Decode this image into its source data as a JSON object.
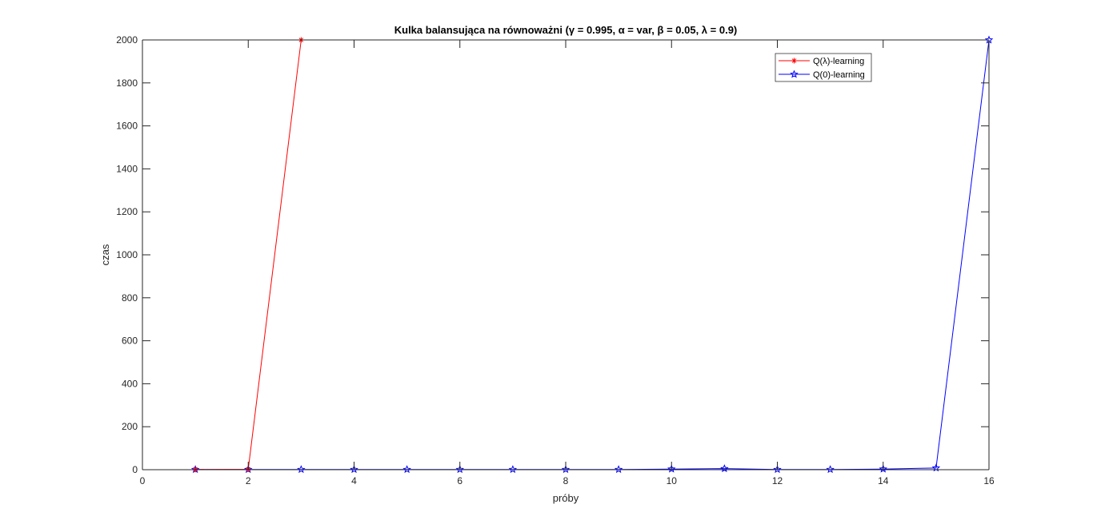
{
  "chart_data": {
    "type": "line",
    "title": "Kulka balansująca na równoważni (γ = 0.995, α = var, β = 0.05, λ = 0.9)",
    "xlabel": "próby",
    "ylabel": "czas",
    "xlim": [
      0,
      16
    ],
    "ylim": [
      0,
      2000
    ],
    "xticks": [
      0,
      2,
      4,
      6,
      8,
      10,
      12,
      14,
      16
    ],
    "yticks": [
      0,
      200,
      400,
      600,
      800,
      1000,
      1200,
      1400,
      1600,
      1800,
      2000
    ],
    "grid": false,
    "legend_position": "top-right",
    "series": [
      {
        "name": "Q(λ)-learning",
        "color": "#ff0000",
        "marker": "asterisk",
        "x": [
          1,
          2,
          3
        ],
        "y": [
          1,
          2,
          2000
        ]
      },
      {
        "name": "Q(0)-learning",
        "color": "#0000ff",
        "marker": "pentagram",
        "x": [
          1,
          2,
          3,
          4,
          5,
          6,
          7,
          8,
          9,
          10,
          11,
          12,
          13,
          14,
          15,
          16
        ],
        "y": [
          1,
          1,
          1,
          1,
          1,
          1,
          1,
          1,
          1,
          3,
          5,
          1,
          1,
          3,
          8,
          2000
        ]
      }
    ]
  }
}
